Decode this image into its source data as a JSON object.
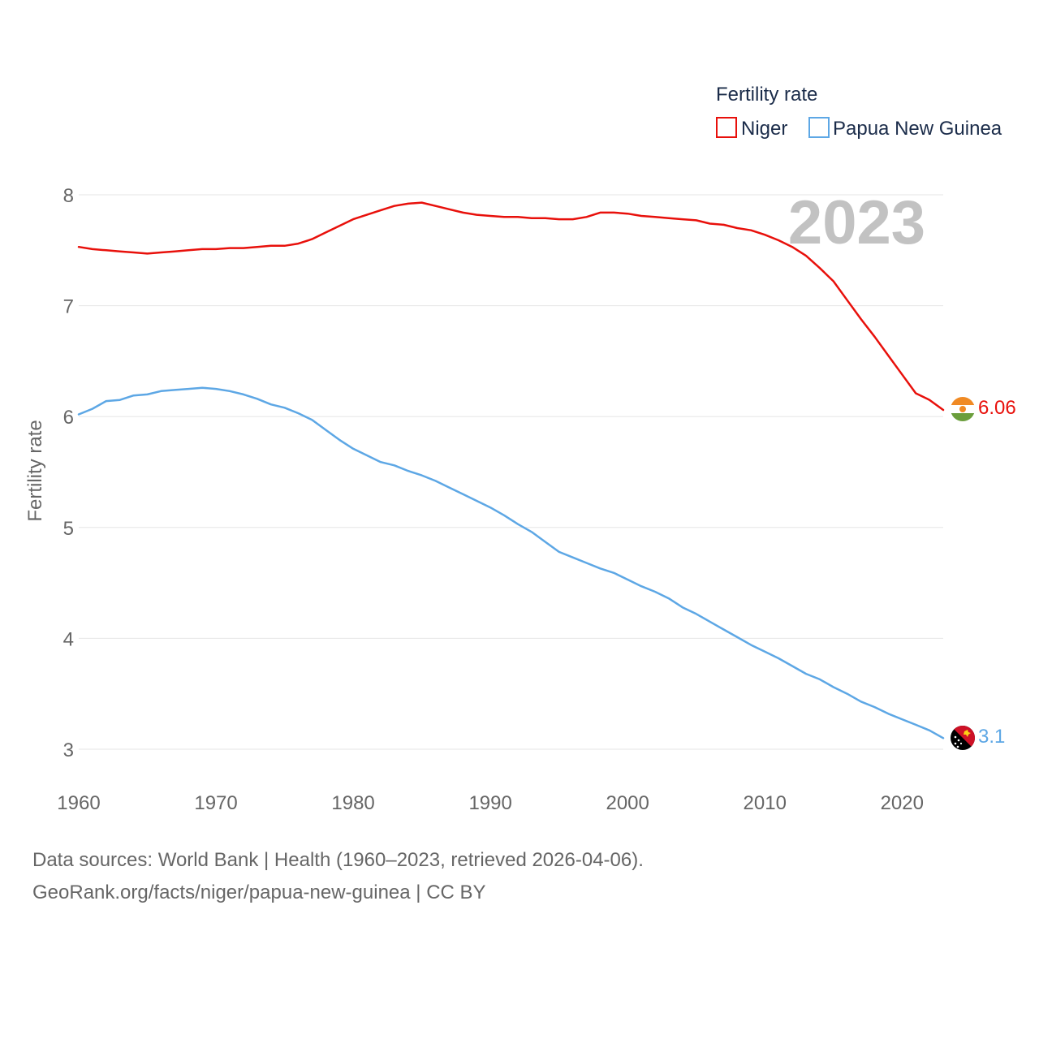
{
  "chart_data": {
    "type": "line",
    "legend_title": "Fertility rate",
    "ylabel": "Fertility rate",
    "xlabel": "",
    "year_label": "2023",
    "xlim": [
      1960,
      2023
    ],
    "ylim": [
      3,
      8
    ],
    "x_ticks": [
      1960,
      1970,
      1980,
      1990,
      2000,
      2010,
      2020
    ],
    "y_ticks": [
      3,
      4,
      5,
      6,
      7,
      8
    ],
    "grid": true,
    "legend_position": "top-right",
    "x": [
      1960,
      1961,
      1962,
      1963,
      1964,
      1965,
      1966,
      1967,
      1968,
      1969,
      1970,
      1971,
      1972,
      1973,
      1974,
      1975,
      1976,
      1977,
      1978,
      1979,
      1980,
      1981,
      1982,
      1983,
      1984,
      1985,
      1986,
      1987,
      1988,
      1989,
      1990,
      1991,
      1992,
      1993,
      1994,
      1995,
      1996,
      1997,
      1998,
      1999,
      2000,
      2001,
      2002,
      2003,
      2004,
      2005,
      2006,
      2007,
      2008,
      2009,
      2010,
      2011,
      2012,
      2013,
      2014,
      2015,
      2016,
      2017,
      2018,
      2019,
      2020,
      2021,
      2022,
      2023
    ],
    "series": [
      {
        "name": "Niger",
        "color": "#e8100b",
        "end_label": "6.06",
        "values": [
          7.53,
          7.51,
          7.5,
          7.49,
          7.48,
          7.47,
          7.48,
          7.49,
          7.5,
          7.51,
          7.51,
          7.52,
          7.52,
          7.53,
          7.54,
          7.54,
          7.56,
          7.6,
          7.66,
          7.72,
          7.78,
          7.82,
          7.86,
          7.9,
          7.92,
          7.93,
          7.9,
          7.87,
          7.84,
          7.82,
          7.81,
          7.8,
          7.8,
          7.79,
          7.79,
          7.78,
          7.78,
          7.8,
          7.84,
          7.84,
          7.83,
          7.81,
          7.8,
          7.79,
          7.78,
          7.77,
          7.74,
          7.73,
          7.7,
          7.68,
          7.64,
          7.59,
          7.53,
          7.45,
          7.34,
          7.22,
          7.05,
          6.88,
          6.72,
          6.55,
          6.38,
          6.21,
          6.15,
          6.06
        ]
      },
      {
        "name": "Papua New Guinea",
        "color": "#5da7e5",
        "end_label": "3.1",
        "values": [
          6.02,
          6.07,
          6.14,
          6.15,
          6.19,
          6.2,
          6.23,
          6.24,
          6.25,
          6.26,
          6.25,
          6.23,
          6.2,
          6.16,
          6.11,
          6.08,
          6.03,
          5.97,
          5.88,
          5.79,
          5.71,
          5.65,
          5.59,
          5.56,
          5.51,
          5.47,
          5.42,
          5.36,
          5.3,
          5.24,
          5.18,
          5.11,
          5.03,
          4.96,
          4.87,
          4.78,
          4.73,
          4.68,
          4.63,
          4.59,
          4.53,
          4.47,
          4.42,
          4.36,
          4.28,
          4.22,
          4.15,
          4.08,
          4.01,
          3.94,
          3.88,
          3.82,
          3.75,
          3.68,
          3.63,
          3.56,
          3.5,
          3.43,
          3.38,
          3.32,
          3.27,
          3.22,
          3.17,
          3.1
        ]
      }
    ]
  },
  "source": {
    "line1": "Data sources: World Bank | Health (1960–2023, retrieved 2026-04-06).",
    "line2": "GeoRank.org/facts/niger/papua-new-guinea | CC BY"
  }
}
